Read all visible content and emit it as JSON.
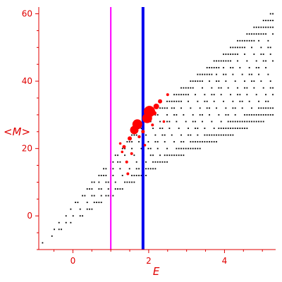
{
  "chart_data": {
    "type": "scatter",
    "title": "",
    "xlabel": "E",
    "ylabel": "<M>",
    "xlim": [
      -0.9,
      5.35
    ],
    "ylim": [
      -10,
      62
    ],
    "xticks": [
      0,
      2,
      4
    ],
    "yticks": [
      0,
      20,
      40,
      60
    ],
    "grid": false,
    "colors": {
      "axis": "#e00000",
      "points": "#000000",
      "highlight": "#ff0000",
      "vline_magenta": "#ff00ff",
      "vline_blue": "#0000ee"
    },
    "vlines": [
      {
        "x": 1.0,
        "color": "#ff00ff",
        "width": 2
      },
      {
        "x": 1.85,
        "color": "#0000ee",
        "width": 4
      }
    ],
    "band": {
      "lower_edge": [
        [
          -0.8,
          -8
        ],
        [
          0.8,
          4
        ],
        [
          2.5,
          16
        ],
        [
          5.3,
          29
        ]
      ],
      "upper_edge": [
        [
          -0.8,
          -8
        ],
        [
          0.5,
          10
        ],
        [
          2.0,
          30
        ],
        [
          5.3,
          61
        ]
      ]
    },
    "highlight_points": [
      {
        "x": 1.62,
        "y": 25.5,
        "r": 6
      },
      {
        "x": 1.7,
        "y": 27.2,
        "r": 7
      },
      {
        "x": 1.96,
        "y": 29.0,
        "r": 7
      },
      {
        "x": 2.02,
        "y": 31.0,
        "r": 8
      },
      {
        "x": 1.5,
        "y": 23.0,
        "r": 3
      },
      {
        "x": 1.35,
        "y": 20.5,
        "r": 2.5
      },
      {
        "x": 2.2,
        "y": 32.5,
        "r": 4
      },
      {
        "x": 2.3,
        "y": 34.0,
        "r": 3
      },
      {
        "x": 1.85,
        "y": 25.0,
        "r": 2.5
      },
      {
        "x": 1.42,
        "y": 16.0,
        "r": 2
      },
      {
        "x": 1.55,
        "y": 18.5,
        "r": 2
      },
      {
        "x": 1.45,
        "y": 12.5,
        "r": 2
      },
      {
        "x": 2.1,
        "y": 27.0,
        "r": 2
      },
      {
        "x": 2.5,
        "y": 36.0,
        "r": 2
      },
      {
        "x": 2.4,
        "y": 28.0,
        "r": 1.8
      },
      {
        "x": 1.25,
        "y": 21.5,
        "r": 1.8
      },
      {
        "x": 1.75,
        "y": 23.5,
        "r": 2.2
      },
      {
        "x": 2.15,
        "y": 30.5,
        "r": 3
      },
      {
        "x": 1.3,
        "y": 19.0,
        "r": 1.8
      },
      {
        "x": 1.9,
        "y": 21.0,
        "r": 1.8
      }
    ]
  }
}
